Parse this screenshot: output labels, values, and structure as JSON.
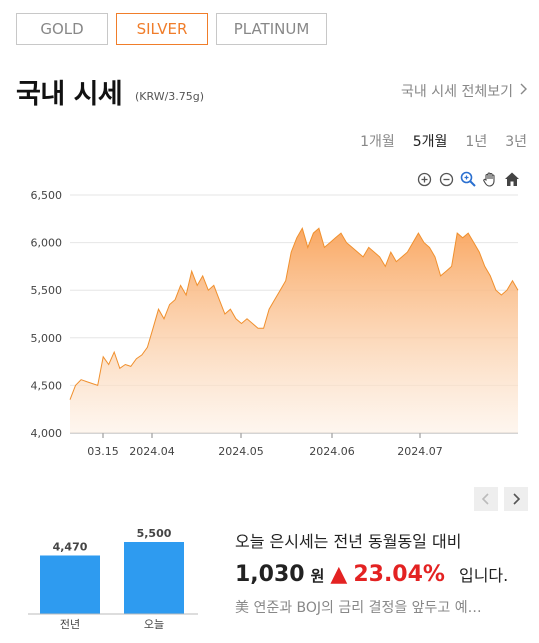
{
  "tabs": [
    {
      "label": "GOLD",
      "active": false
    },
    {
      "label": "SILVER",
      "active": true
    },
    {
      "label": "PLATINUM",
      "active": false
    }
  ],
  "header": {
    "title": "국내 시세",
    "unit": "(KRW/3.75g)",
    "view_all": "국내 시세 전체보기"
  },
  "periods": [
    {
      "label": "1개월",
      "active": false
    },
    {
      "label": "5개월",
      "active": true
    },
    {
      "label": "1년",
      "active": false
    },
    {
      "label": "3년",
      "active": false
    }
  ],
  "colors": {
    "accent": "#f07d2a",
    "area_fill": "#f9a45c",
    "bar": "#2e9bf0",
    "up_red": "#e32222"
  },
  "chart_data": {
    "type": "area",
    "title": "",
    "xlabel": "",
    "ylabel": "",
    "ylim": [
      4000,
      6500
    ],
    "y_ticks": [
      "4,000",
      "4,500",
      "5,000",
      "5,500",
      "6,000",
      "6,500"
    ],
    "x_ticks": [
      "03.15",
      "2024.04",
      "2024.05",
      "2024.06",
      "2024.07"
    ],
    "grid": true,
    "series": [
      {
        "values": [
          4350,
          4500,
          4560,
          4540,
          4520,
          4500,
          4800,
          4720,
          4850,
          4680,
          4720,
          4700,
          4780,
          4820,
          4900,
          5100,
          5300,
          5200,
          5350,
          5400,
          5550,
          5450,
          5700,
          5550,
          5650,
          5500,
          5550,
          5400,
          5250,
          5300,
          5200,
          5150,
          5200,
          5150,
          5100,
          5100,
          5300,
          5400,
          5500,
          5600,
          5900,
          6050,
          6150,
          5950,
          6100,
          6150,
          5950,
          6000,
          6050,
          6100,
          6000,
          5950,
          5900,
          5850,
          5950,
          5900,
          5850,
          5750,
          5900,
          5800,
          5850,
          5900,
          6000,
          6100,
          6000,
          5950,
          5850,
          5650,
          5700,
          5750,
          6100,
          6050,
          6100,
          6000,
          5900,
          5750,
          5650,
          5500,
          5450,
          5500,
          5600,
          5500
        ],
        "x_range": [
          "2024.03.05",
          "2024.07.31"
        ]
      }
    ]
  },
  "compare": {
    "categories": [
      "전년",
      "오늘"
    ],
    "values": [
      4470,
      5500
    ],
    "value_labels": [
      "4,470",
      "5,500"
    ]
  },
  "summary": {
    "line1": "오늘 은시세는 전년 동월동일 대비",
    "diff": "1,030",
    "diff_unit": "원",
    "arrow": "▲",
    "pct": "23.04%",
    "tail": "입니다.",
    "news": "美 연준과 BOJ의 금리 결정을 앞두고 예…"
  },
  "tools": [
    "zoom-in-icon",
    "zoom-out-icon",
    "zoom-select-icon",
    "pan-hand-icon",
    "reset-home-icon"
  ]
}
